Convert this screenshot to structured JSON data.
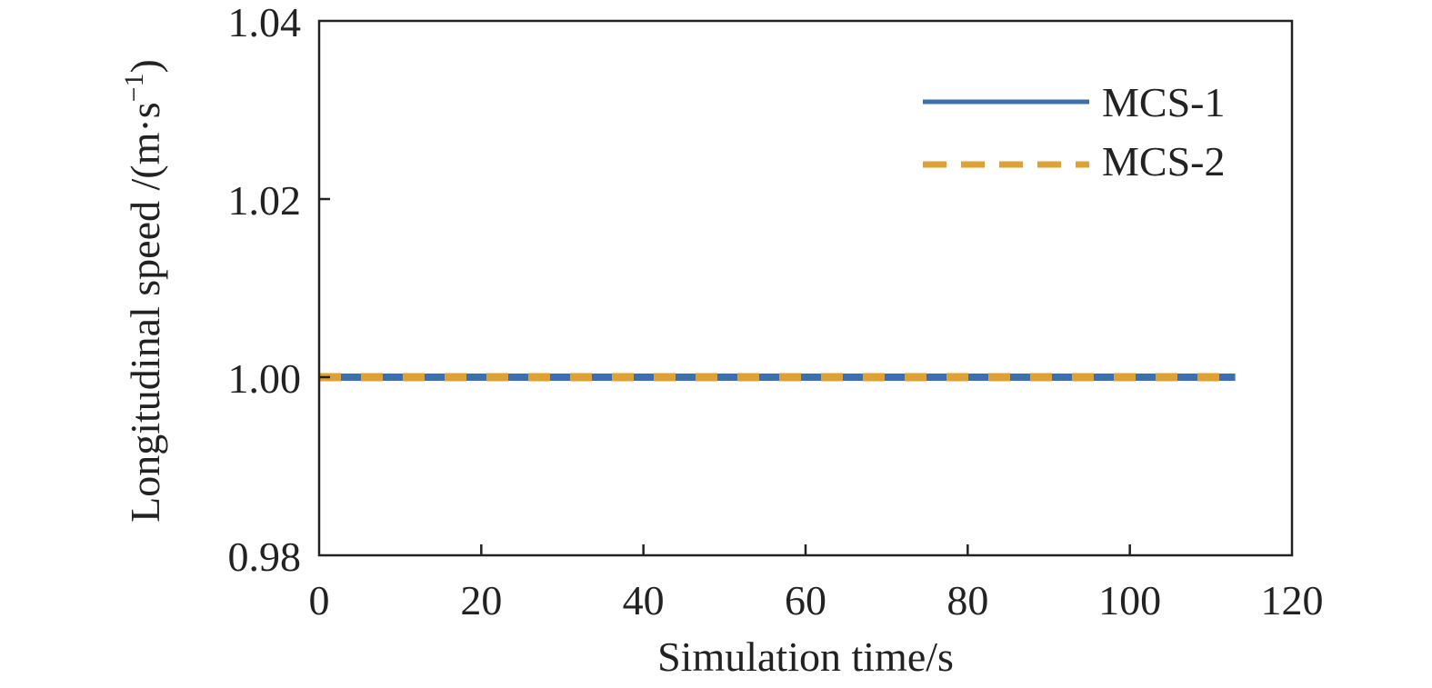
{
  "chart_data": {
    "type": "line",
    "xlabel": "Simulation time/s",
    "ylabel": "Longitudinal speed /(m·s",
    "ylabel_sup": "−1",
    "ylabel_close": ")",
    "xlim": [
      0,
      120
    ],
    "ylim": [
      0.98,
      1.04
    ],
    "xticks": [
      0,
      20,
      40,
      60,
      80,
      100,
      120
    ],
    "xtick_labels": [
      "0",
      "20",
      "40",
      "60",
      "80",
      "100",
      "120"
    ],
    "yticks": [
      0.98,
      1.0,
      1.02,
      1.04
    ],
    "ytick_labels": [
      "0.98",
      "1.00",
      "1.02",
      "1.04"
    ],
    "grid": false,
    "legend_position": "top-right",
    "series": [
      {
        "name": "MCS-1",
        "color": "#3b6fb3",
        "style": "solid",
        "x": [
          0,
          113
        ],
        "y": [
          1.0,
          1.0
        ]
      },
      {
        "name": "MCS-2",
        "color": "#dea132",
        "style": "dashed",
        "x": [
          0,
          113
        ],
        "y": [
          1.0,
          1.0
        ]
      }
    ]
  }
}
